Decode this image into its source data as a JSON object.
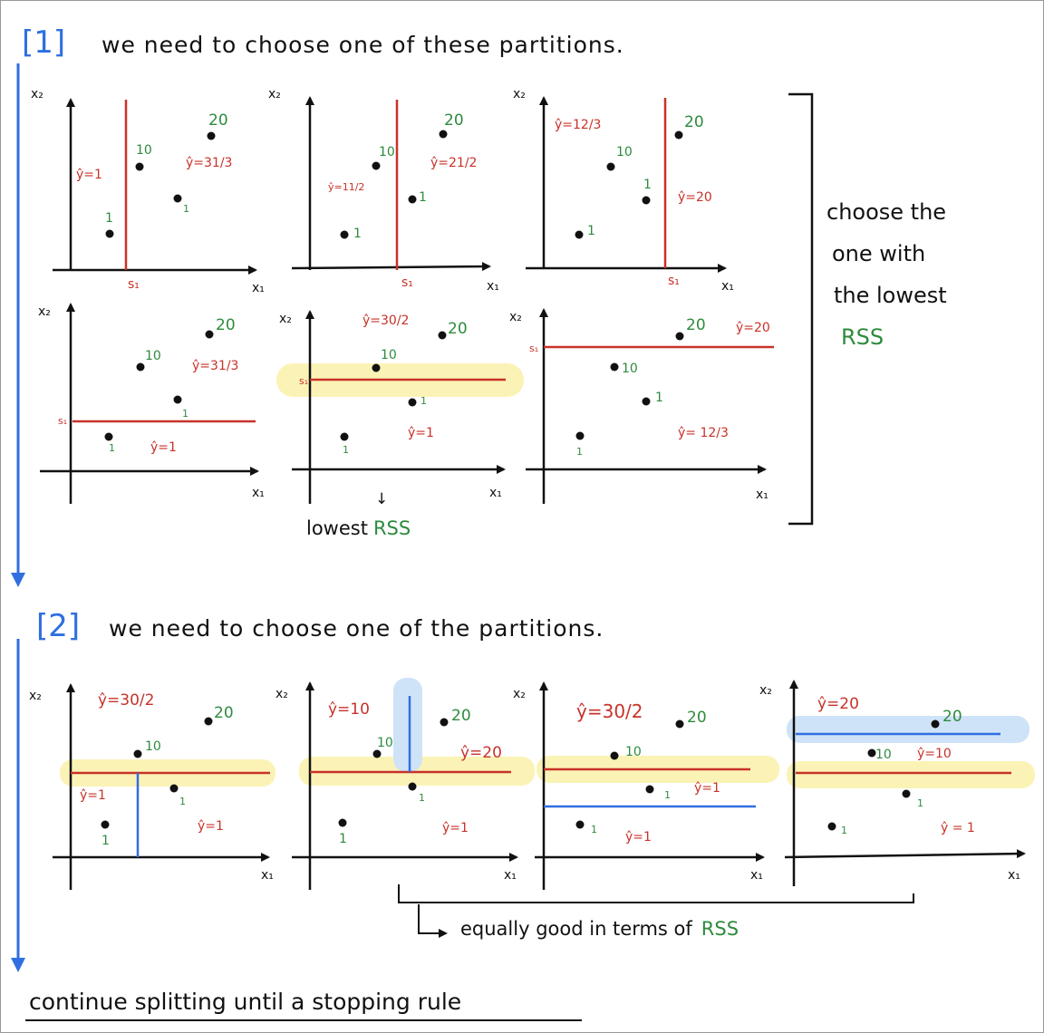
{
  "step1": {
    "number": "[1]",
    "title": "we need to choose one of these partitions.",
    "panels": [
      {
        "x2": "x₂",
        "x1": "x₁",
        "s": "s₁",
        "labels": [
          "ŷ=1",
          "ŷ=31/3"
        ],
        "points": [
          "1",
          "10",
          "20",
          "1"
        ]
      },
      {
        "x2": "x₂",
        "x1": "x₁",
        "s": "s₁",
        "labels": [
          "ŷ=11/2",
          "ŷ=21/2"
        ],
        "points": [
          "1",
          "10",
          "20",
          "1"
        ]
      },
      {
        "x2": "x₂",
        "x1": "x₁",
        "s": "s₁",
        "labels": [
          "ŷ=12/3",
          "ŷ=20"
        ],
        "points": [
          "1",
          "10",
          "1",
          "20"
        ]
      },
      {
        "x2": "x₂",
        "x1": "x₁",
        "s": "s₁",
        "labels": [
          "ŷ=1",
          "ŷ=31/3"
        ],
        "points": [
          "1",
          "10",
          "20",
          "1"
        ]
      },
      {
        "x2": "x₂",
        "x1": "x₁",
        "s": "s₁",
        "labels": [
          "ŷ=30/2",
          "ŷ=1"
        ],
        "points": [
          "1",
          "10",
          "20",
          "1"
        ]
      },
      {
        "x2": "x₂",
        "x1": "x₁",
        "s": "s₁",
        "labels": [
          "ŷ=20",
          "ŷ= 12/3"
        ],
        "points": [
          "1",
          "10",
          "1",
          "20"
        ]
      }
    ],
    "arrow": "↓",
    "lowest_prefix": "lowest",
    "lowest_rss": "RSS",
    "side_note": [
      "choose the",
      "one with",
      "the lowest"
    ],
    "side_rss": "RSS"
  },
  "step2": {
    "number": "[2]",
    "title": "we need to choose one of the partitions.",
    "panels": [
      {
        "x2": "x₂",
        "x1": "x₁",
        "labels": [
          "ŷ=30/2",
          "ŷ=1",
          "ŷ=1"
        ],
        "points": [
          "20",
          "10",
          "1",
          "1"
        ]
      },
      {
        "x2": "x₂",
        "x1": "x₁",
        "labels": [
          "ŷ=10",
          "ŷ=20",
          "ŷ=1"
        ],
        "points": [
          "20",
          "10",
          "1",
          "1"
        ]
      },
      {
        "x2": "x₂",
        "x1": "x₁",
        "labels": [
          "ŷ=30/2",
          "ŷ=1",
          "ŷ=1"
        ],
        "points": [
          "20",
          "10",
          "1",
          "1"
        ]
      },
      {
        "x2": "x₂",
        "x1": "x₁",
        "labels": [
          "ŷ=20",
          "ŷ=10",
          "ŷ = 1"
        ],
        "points": [
          "20",
          "10",
          "1",
          "1"
        ]
      }
    ],
    "bracket_prefix": "equally good in terms of",
    "bracket_rss": "RSS"
  },
  "footer": "continue splitting until a stopping rule",
  "colors": {
    "red": "#c8322a",
    "green": "#2e8b3e",
    "blue": "#2f6fe0",
    "yellow": "#fbf3b6",
    "lightblue": "#cfe3f8"
  }
}
